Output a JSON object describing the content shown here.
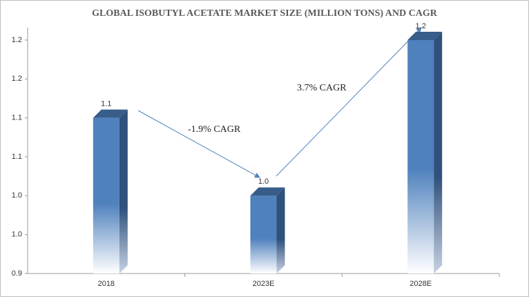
{
  "chart_data": {
    "type": "bar",
    "title": "GLOBAL ISOBUTYL ACETATE MARKET SIZE (MILLION TONS) AND CAGR",
    "categories": [
      "2018",
      "2023E",
      "2028E"
    ],
    "values": [
      1.1,
      1.0,
      1.2
    ],
    "value_labels": [
      "1.1",
      "1.0",
      "1.2"
    ],
    "color": "#4f81bd",
    "ylim": [
      0.9,
      1.2
    ],
    "yticks": [
      0.9,
      {
        "value": 0.95,
        "label": "1.0"
      },
      {
        "value": 1.0,
        "label": "1.0"
      },
      {
        "value": 1.05,
        "label": "1.1"
      },
      1.1,
      {
        "value": 1.15,
        "label": "1.2"
      },
      1.2
    ],
    "annotations": [
      "-1.9% CAGR",
      "3.7% CAGR"
    ]
  }
}
